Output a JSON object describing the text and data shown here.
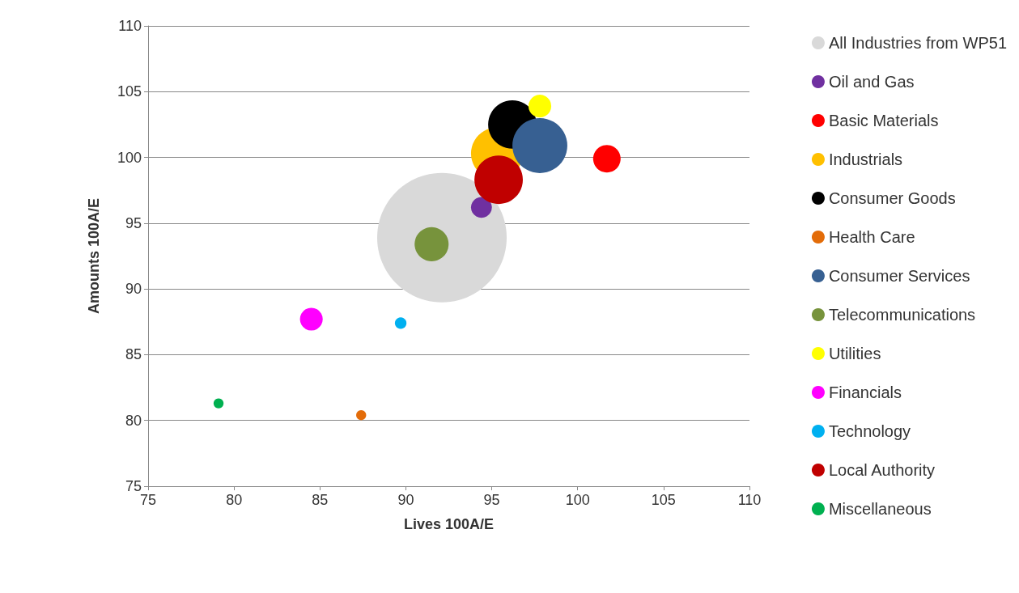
{
  "chart_data": {
    "type": "bubble",
    "xlabel": "Lives 100A/E",
    "ylabel": "Amounts 100A/E",
    "xlim": [
      75,
      110
    ],
    "xticks": [
      75,
      80,
      85,
      90,
      95,
      100,
      105,
      110
    ],
    "ylim": [
      75,
      110
    ],
    "yticks": [
      75,
      80,
      85,
      90,
      95,
      100,
      105,
      110
    ],
    "grid": "y",
    "legend": "right",
    "marker": "circle",
    "series": [
      {
        "name": "All Industries from WP51",
        "color": "#d9d9d9",
        "x": [
          92.1
        ],
        "values": [
          93.9
        ],
        "sizes": [
          1
        ]
      },
      {
        "name": "Oil and Gas",
        "color": "#7030a0",
        "x": [
          94.4
        ],
        "values": [
          96.2
        ],
        "sizes": [
          0.026
        ]
      },
      {
        "name": "Basic Materials",
        "color": "#ff0000",
        "x": [
          101.7
        ],
        "values": [
          99.9
        ],
        "sizes": [
          0.045
        ]
      },
      {
        "name": "Industrials",
        "color": "#ffc000",
        "x": [
          95.3
        ],
        "values": [
          100.3
        ],
        "sizes": [
          0.16
        ]
      },
      {
        "name": "Consumer Goods",
        "color": "#000000",
        "x": [
          96.2
        ],
        "values": [
          102.5
        ],
        "sizes": [
          0.14
        ]
      },
      {
        "name": "Health Care",
        "color": "#e36c09",
        "x": [
          87.4
        ],
        "values": [
          80.4
        ],
        "sizes": [
          0.006
        ]
      },
      {
        "name": "Consumer Services",
        "color": "#376092",
        "x": [
          97.8
        ],
        "values": [
          100.9
        ],
        "sizes": [
          0.18
        ]
      },
      {
        "name": "Telecommunications",
        "color": "#77933c",
        "x": [
          91.5
        ],
        "values": [
          93.4
        ],
        "sizes": [
          0.069
        ]
      },
      {
        "name": "Utilities",
        "color": "#ffff00",
        "x": [
          97.8
        ],
        "values": [
          103.9
        ],
        "sizes": [
          0.031
        ]
      },
      {
        "name": "Financials",
        "color": "#ff00ff",
        "x": [
          84.5
        ],
        "values": [
          87.7
        ],
        "sizes": [
          0.031
        ]
      },
      {
        "name": "Technology",
        "color": "#00b0f0",
        "x": [
          89.7
        ],
        "values": [
          87.4
        ],
        "sizes": [
          0.008
        ]
      },
      {
        "name": "Local Authority",
        "color": "#c00000",
        "x": [
          95.4
        ],
        "values": [
          98.3
        ],
        "sizes": [
          0.14
        ]
      },
      {
        "name": "Miscellaneous",
        "color": "#00b050",
        "x": [
          79.1
        ],
        "values": [
          81.3
        ],
        "sizes": [
          0.006
        ]
      }
    ]
  }
}
